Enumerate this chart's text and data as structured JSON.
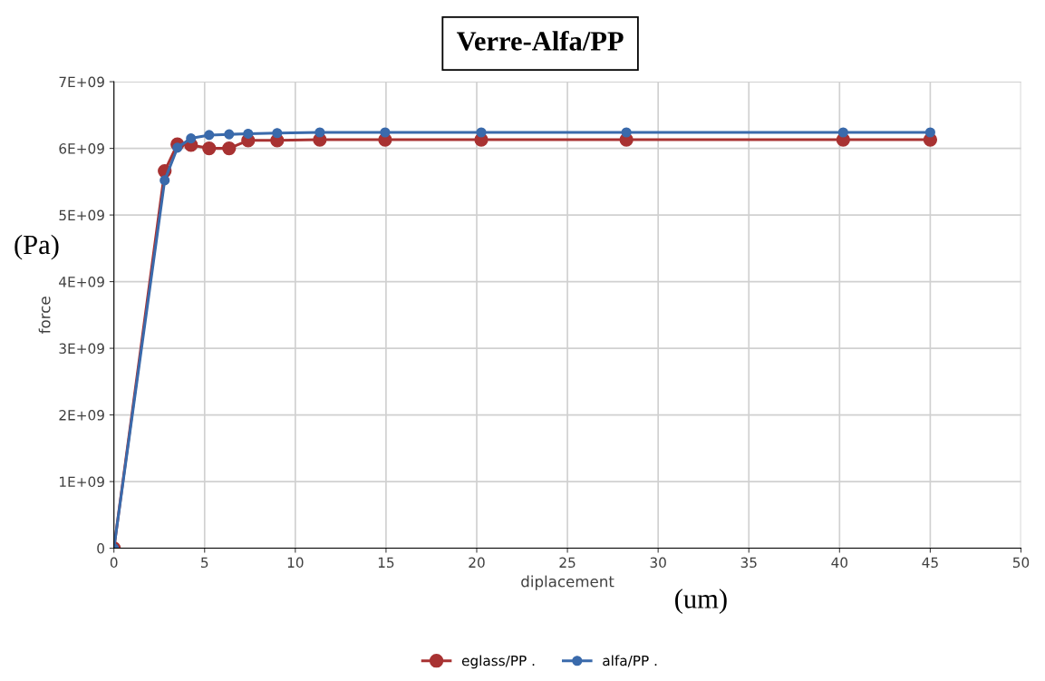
{
  "chart_data": {
    "type": "line",
    "title": "Verre-Alfa/PP",
    "xlabel": "diplacement",
    "ylabel": "force",
    "annotations": [
      "(Pa)",
      "(um)"
    ],
    "x": [
      0,
      2.8,
      3.5,
      4.25,
      5.25,
      6.35,
      7.4,
      9.0,
      11.35,
      14.95,
      20.25,
      28.25,
      40.2,
      45
    ],
    "series": [
      {
        "name": "eglass/PP .",
        "color": "#a83232",
        "values": [
          0,
          5660000000.0,
          6060000000.0,
          6050000000.0,
          6000000000.0,
          6000000000.0,
          6120000000.0,
          6120000000.0,
          6130000000.0,
          6130000000.0,
          6130000000.0,
          6130000000.0,
          6130000000.0,
          6130000000.0
        ]
      },
      {
        "name": "alfa/PP .",
        "color": "#3a6aab",
        "values": [
          0,
          5520000000.0,
          6010000000.0,
          6150000000.0,
          6200000000.0,
          6210000000.0,
          6220000000.0,
          6230000000.0,
          6240000000.0,
          6240000000.0,
          6240000000.0,
          6240000000.0,
          6240000000.0,
          6240000000.0
        ]
      }
    ],
    "xlim": [
      0,
      50
    ],
    "xticks": [
      0,
      5,
      10,
      15,
      20,
      25,
      30,
      35,
      40,
      45,
      50
    ],
    "ylim": [
      0,
      7000000000.0
    ],
    "yticks": [
      {
        "value": 0,
        "label": "0"
      },
      {
        "value": 1000000000.0,
        "label": "1E+09"
      },
      {
        "value": 2000000000.0,
        "label": "2E+09"
      },
      {
        "value": 3000000000.0,
        "label": "3E+09"
      },
      {
        "value": 4000000000.0,
        "label": "4E+09"
      },
      {
        "value": 5000000000.0,
        "label": "5E+09"
      },
      {
        "value": 6000000000.0,
        "label": "6E+09"
      },
      {
        "value": 7000000000.0,
        "label": "7E+09"
      }
    ],
    "grid": true,
    "legend": "bottom",
    "marker": "circle",
    "line_style": "solid"
  }
}
